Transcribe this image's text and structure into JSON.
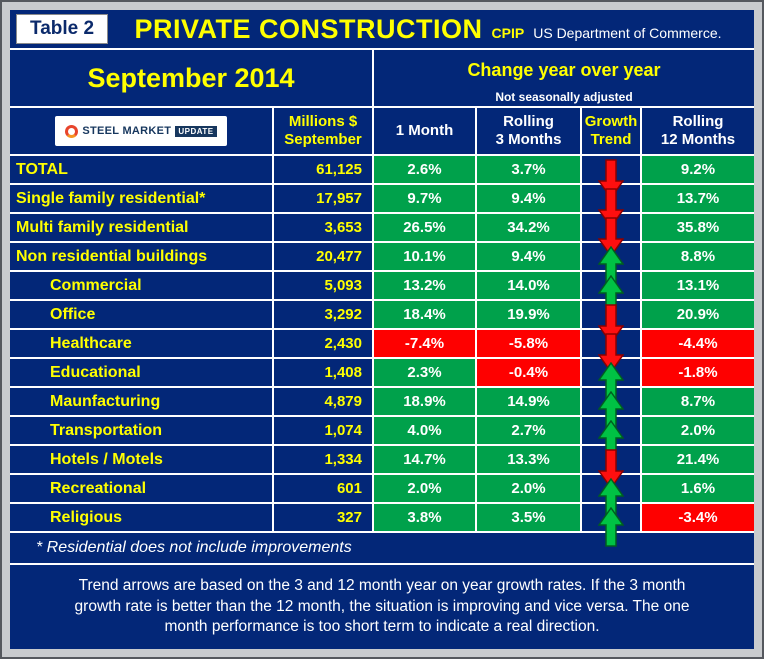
{
  "header": {
    "table_label": "Table 2",
    "title": "PRIVATE CONSTRUCTION",
    "title_abbr": "CPIP",
    "title_source": "US Department of Commerce.",
    "month_label": "September 2014",
    "change_label": "Change year over year",
    "adjust_note": "Not seasonally adjusted"
  },
  "logo": {
    "name1": "STEEL MARKET",
    "name2": "UPDATE"
  },
  "columns": {
    "millions_line1": "Millions $",
    "millions_line2": "September",
    "one_month": "1 Month",
    "rolling3_line1": "Rolling",
    "rolling3_line2": "3 Months",
    "trend_line1": "Growth",
    "trend_line2": "Trend",
    "rolling12_line1": "Rolling",
    "rolling12_line2": "12 Months"
  },
  "rows": [
    {
      "label": "TOTAL",
      "indent": false,
      "millions": "61,125",
      "m1": "2.6%",
      "m1_state": "pos",
      "r3": "3.7%",
      "r3_state": "pos",
      "trend": "down",
      "r12": "9.2%",
      "r12_state": "pos"
    },
    {
      "label": "Single family residential*",
      "indent": false,
      "millions": "17,957",
      "m1": "9.7%",
      "m1_state": "pos",
      "r3": "9.4%",
      "r3_state": "pos",
      "trend": "down",
      "r12": "13.7%",
      "r12_state": "pos"
    },
    {
      "label": "Multi family residential",
      "indent": false,
      "millions": "3,653",
      "m1": "26.5%",
      "m1_state": "pos",
      "r3": "34.2%",
      "r3_state": "pos",
      "trend": "down",
      "r12": "35.8%",
      "r12_state": "pos"
    },
    {
      "label": "Non residential buildings",
      "indent": false,
      "millions": "20,477",
      "m1": "10.1%",
      "m1_state": "pos",
      "r3": "9.4%",
      "r3_state": "pos",
      "trend": "up",
      "r12": "8.8%",
      "r12_state": "pos"
    },
    {
      "label": "Commercial",
      "indent": true,
      "millions": "5,093",
      "m1": "13.2%",
      "m1_state": "pos",
      "r3": "14.0%",
      "r3_state": "pos",
      "trend": "up",
      "r12": "13.1%",
      "r12_state": "pos"
    },
    {
      "label": "Office",
      "indent": true,
      "millions": "3,292",
      "m1": "18.4%",
      "m1_state": "pos",
      "r3": "19.9%",
      "r3_state": "pos",
      "trend": "down",
      "r12": "20.9%",
      "r12_state": "pos"
    },
    {
      "label": "Healthcare",
      "indent": true,
      "millions": "2,430",
      "m1": "-7.4%",
      "m1_state": "neg",
      "r3": "-5.8%",
      "r3_state": "neg",
      "trend": "down",
      "r12": "-4.4%",
      "r12_state": "neg"
    },
    {
      "label": "Educational",
      "indent": true,
      "millions": "1,408",
      "m1": "2.3%",
      "m1_state": "pos",
      "r3": "-0.4%",
      "r3_state": "neg",
      "trend": "up",
      "r12": "-1.8%",
      "r12_state": "neg"
    },
    {
      "label": "Maunfacturing",
      "indent": true,
      "millions": "4,879",
      "m1": "18.9%",
      "m1_state": "pos",
      "r3": "14.9%",
      "r3_state": "pos",
      "trend": "up",
      "r12": "8.7%",
      "r12_state": "pos"
    },
    {
      "label": "Transportation",
      "indent": true,
      "millions": "1,074",
      "m1": "4.0%",
      "m1_state": "pos",
      "r3": "2.7%",
      "r3_state": "pos",
      "trend": "up",
      "r12": "2.0%",
      "r12_state": "pos"
    },
    {
      "label": "Hotels / Motels",
      "indent": true,
      "millions": "1,334",
      "m1": "14.7%",
      "m1_state": "pos",
      "r3": "13.3%",
      "r3_state": "pos",
      "trend": "down",
      "r12": "21.4%",
      "r12_state": "pos"
    },
    {
      "label": "Recreational",
      "indent": true,
      "millions": "601",
      "m1": "2.0%",
      "m1_state": "pos",
      "r3": "2.0%",
      "r3_state": "pos",
      "trend": "up",
      "r12": "1.6%",
      "r12_state": "pos"
    },
    {
      "label": "Religious",
      "indent": true,
      "millions": "327",
      "m1": "3.8%",
      "m1_state": "pos",
      "r3": "3.5%",
      "r3_state": "pos",
      "trend": "up",
      "r12": "-3.4%",
      "r12_state": "neg"
    }
  ],
  "footnote": "* Residential does not include improvements",
  "note_lines": [
    "Trend arrows are based on the 3 and 12 month year on year growth rates. If the 3 month",
    "growth rate is better than the 12 month, the situation is improving and vice versa. The one",
    "month performance is too short term to indicate a real direction."
  ],
  "colors": {
    "background_navy": "#032778",
    "positive_green": "#00A14B",
    "negative_red": "#FE0000",
    "accent_yellow": "#FFFF00",
    "up_arrow_green": "#00C244",
    "down_arrow_red": "#FF0F0F"
  },
  "chart_data": {
    "type": "table",
    "title": "Private Construction (CPIP, US Department of Commerce) — September 2014, change year over year, not seasonally adjusted",
    "columns": [
      "Category",
      "Millions $ September",
      "1 Month %",
      "Rolling 3 Months %",
      "Growth Trend",
      "Rolling 12 Months %"
    ],
    "rows": [
      [
        "TOTAL",
        61125,
        2.6,
        3.7,
        "down",
        9.2
      ],
      [
        "Single family residential*",
        17957,
        9.7,
        9.4,
        "down",
        13.7
      ],
      [
        "Multi family residential",
        3653,
        26.5,
        34.2,
        "down",
        35.8
      ],
      [
        "Non residential buildings",
        20477,
        10.1,
        9.4,
        "up",
        8.8
      ],
      [
        "Commercial",
        5093,
        13.2,
        14.0,
        "up",
        13.1
      ],
      [
        "Office",
        3292,
        18.4,
        19.9,
        "down",
        20.9
      ],
      [
        "Healthcare",
        2430,
        -7.4,
        -5.8,
        "down",
        -4.4
      ],
      [
        "Educational",
        1408,
        2.3,
        -0.4,
        "up",
        -1.8
      ],
      [
        "Maunfacturing",
        4879,
        18.9,
        14.9,
        "up",
        8.7
      ],
      [
        "Transportation",
        1074,
        4.0,
        2.7,
        "up",
        2.0
      ],
      [
        "Hotels / Motels",
        1334,
        14.7,
        13.3,
        "down",
        21.4
      ],
      [
        "Recreational",
        601,
        2.0,
        2.0,
        "up",
        1.6
      ],
      [
        "Religious",
        327,
        3.8,
        3.5,
        "up",
        -3.4
      ]
    ]
  }
}
